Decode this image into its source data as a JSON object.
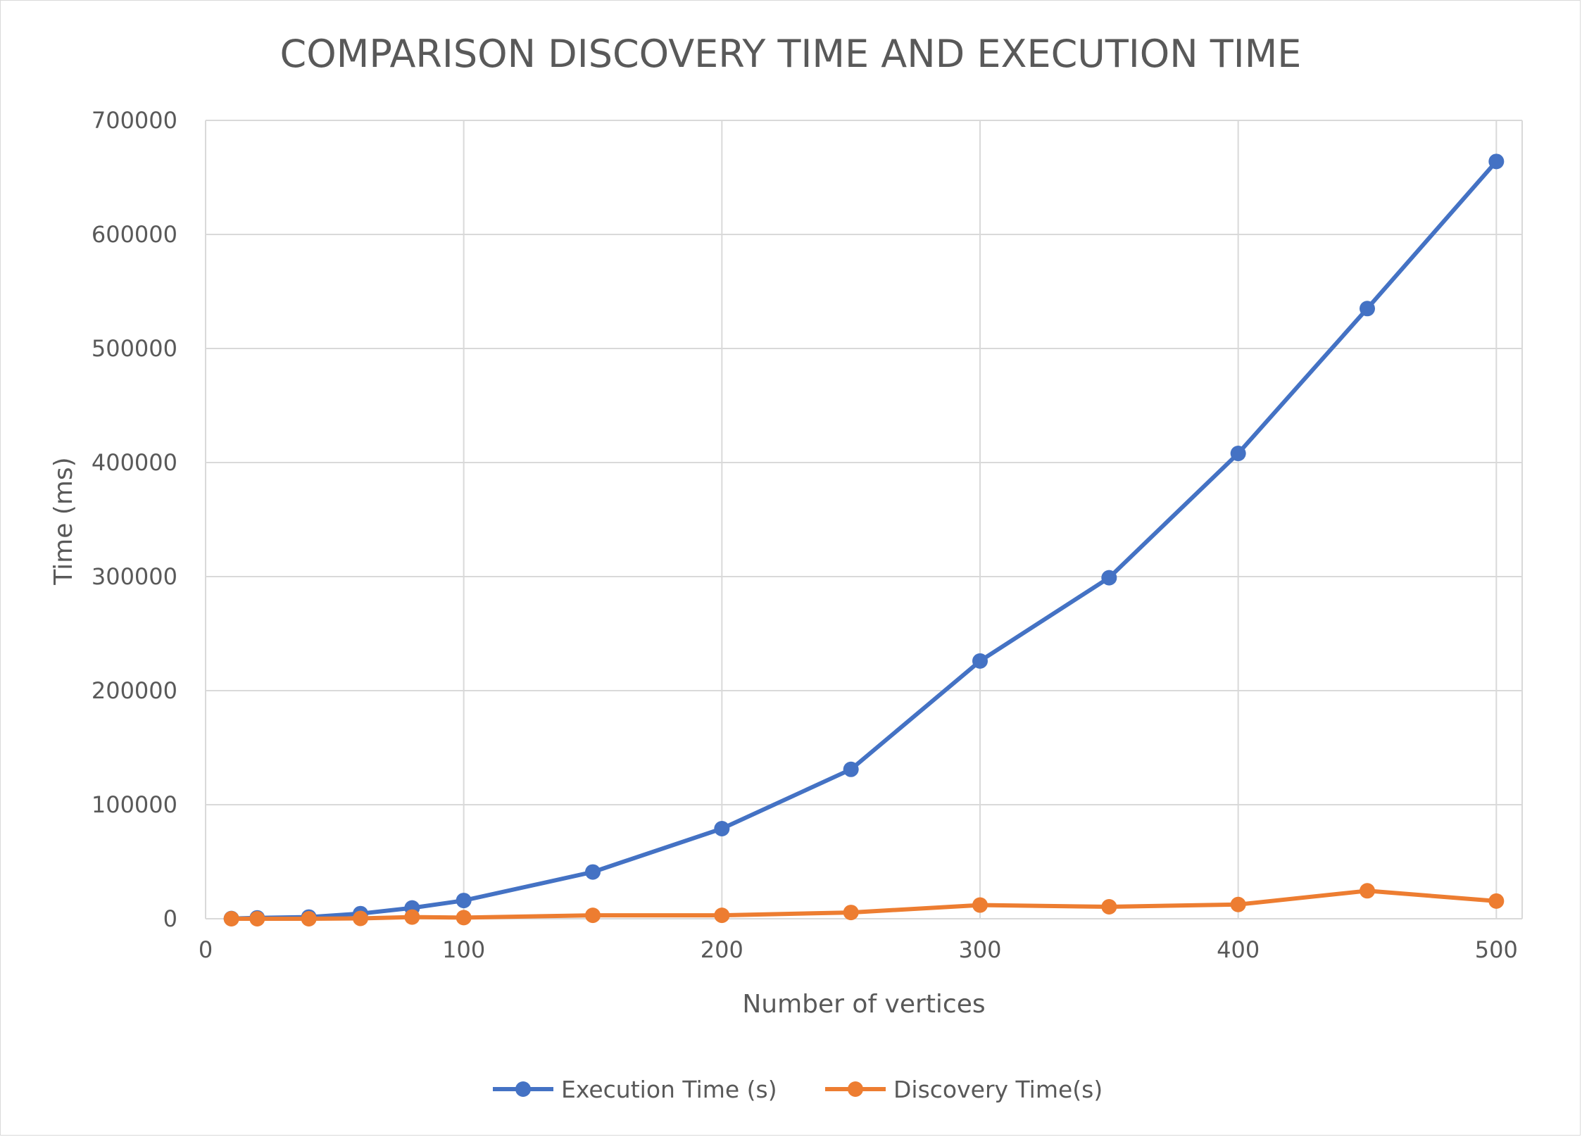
{
  "chart_data": {
    "type": "line",
    "title": "COMPARISON DISCOVERY TIME AND EXECUTION TIME",
    "xlabel": "Number of vertices",
    "ylabel": "Time (ms)",
    "xlim": [
      0,
      510
    ],
    "ylim": [
      0,
      700000
    ],
    "x_ticks": [
      0,
      100,
      200,
      300,
      400,
      500
    ],
    "x_tick_labels": [
      "0",
      "100",
      "200",
      "300",
      "400",
      "500"
    ],
    "y_ticks": [
      0,
      100000,
      200000,
      300000,
      400000,
      500000,
      600000,
      700000
    ],
    "y_tick_labels": [
      "0",
      "100000",
      "200000",
      "300000",
      "400000",
      "500000",
      "600000",
      "700000"
    ],
    "grid": true,
    "legend_position": "bottom",
    "series": [
      {
        "name": "Execution Time (s)",
        "color": "#4472C4",
        "x": [
          10,
          20,
          40,
          60,
          80,
          100,
          150,
          200,
          250,
          300,
          350,
          400,
          450,
          500
        ],
        "y": [
          200,
          800,
          1500,
          4500,
          9500,
          16000,
          41000,
          79000,
          131000,
          226000,
          299000,
          408000,
          535000,
          664000
        ]
      },
      {
        "name": "Discovery Time(s)",
        "color": "#ED7D31",
        "x": [
          10,
          20,
          40,
          60,
          80,
          100,
          150,
          200,
          250,
          300,
          350,
          400,
          450,
          500
        ],
        "y": [
          0,
          0,
          0,
          300,
          1500,
          1000,
          3000,
          3000,
          5500,
          12000,
          10500,
          12500,
          24500,
          15500
        ]
      }
    ]
  }
}
